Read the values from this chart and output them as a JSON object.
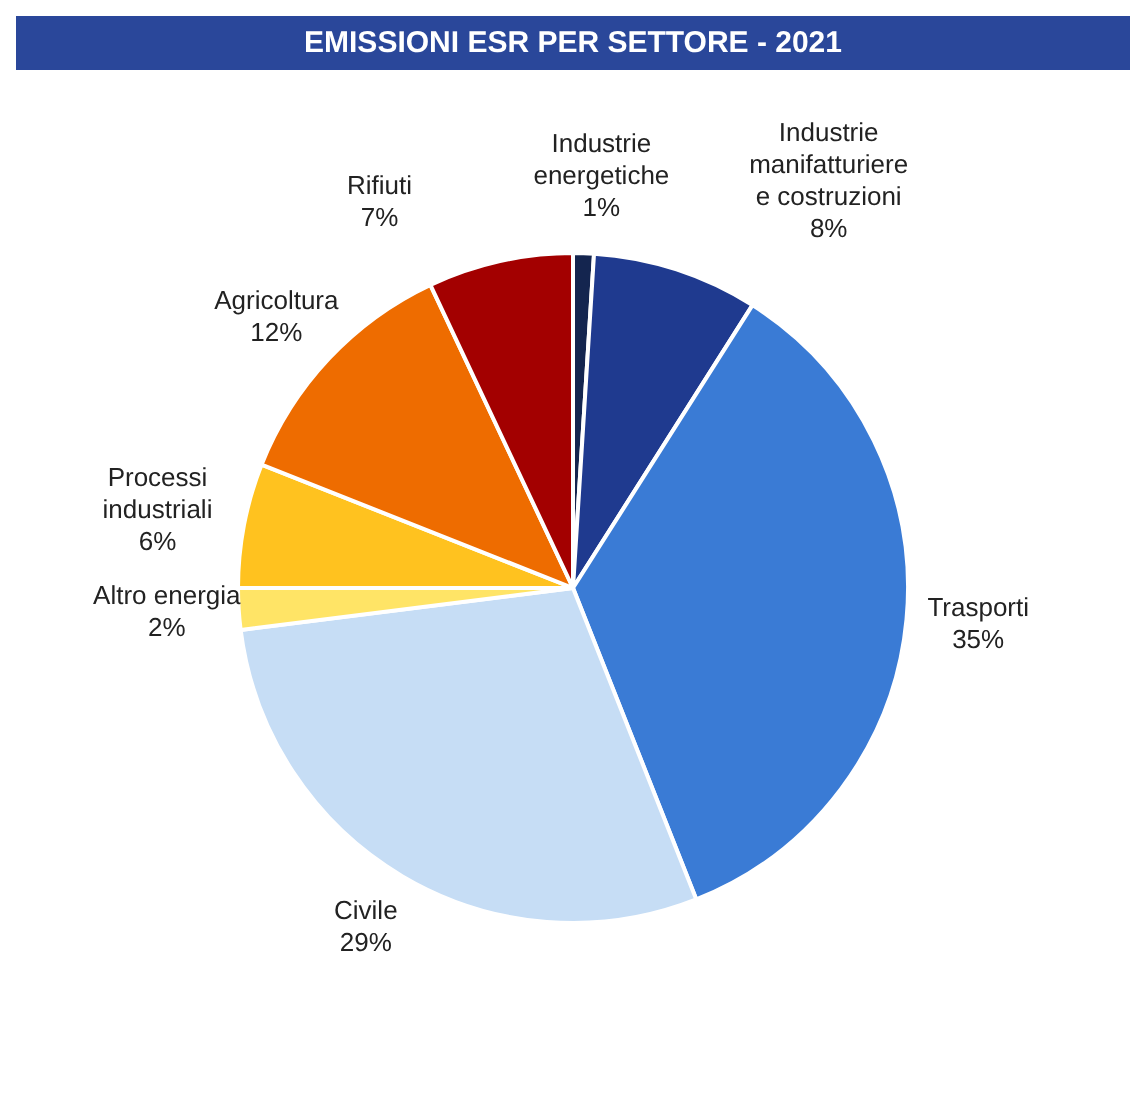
{
  "chart_data": {
    "type": "pie",
    "title": "EMISSIONI ESR PER SETTORE - 2021",
    "categories": [
      "Industrie energetiche",
      "Industrie manifatturiere e costruzioni",
      "Trasporti",
      "Civile",
      "Altro energia",
      "Processi industriali",
      "Agricoltura",
      "Rifiuti"
    ],
    "values": [
      1,
      8,
      35,
      29,
      2,
      6,
      12,
      7
    ],
    "colors": [
      "#14254f",
      "#1f3a8f",
      "#3a7bd5",
      "#c6ddf5",
      "#ffe466",
      "#ffc21f",
      "#ee6c00",
      "#a30000"
    ],
    "value_labels": [
      "1%",
      "8%",
      "35%",
      "29%",
      "2%",
      "6%",
      "12%",
      "7%"
    ],
    "legend": false
  }
}
